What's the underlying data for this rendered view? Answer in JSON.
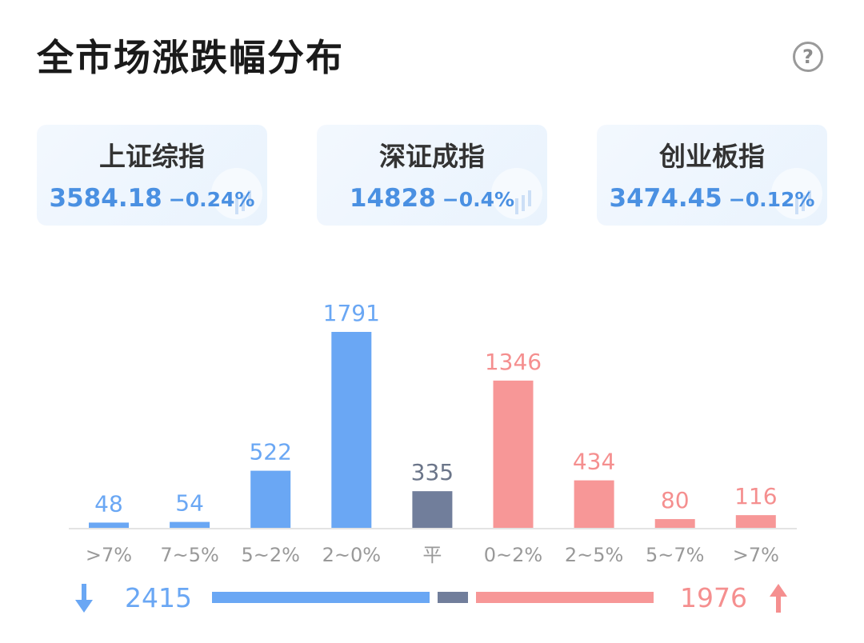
{
  "header": {
    "title": "全市场涨跌幅分布",
    "help_icon": "?"
  },
  "indices": [
    {
      "name": "上证综指",
      "value": "3584.18",
      "change": "−0.24%"
    },
    {
      "name": "深证成指",
      "value": "14828",
      "change": "−0.4%"
    },
    {
      "name": "创业板指",
      "value": "3474.45",
      "change": "−0.12%"
    }
  ],
  "colors": {
    "down": "#6aa7f4",
    "flat": "#717e9b",
    "up": "#f79797",
    "down_text": "#6aa7f4",
    "flat_text": "#6b7589",
    "up_text": "#f58f8f",
    "axis": "#e3e3e3",
    "tick_text": "#999999"
  },
  "chart_data": {
    "type": "bar",
    "categories": [
      ">7%",
      "7~5%",
      "5~2%",
      "2~0%",
      "平",
      "0~2%",
      "2~5%",
      "5~7%",
      ">7%"
    ],
    "values": [
      48,
      54,
      522,
      1791,
      335,
      1346,
      434,
      80,
      116
    ],
    "groups": [
      "down",
      "down",
      "down",
      "down",
      "flat",
      "up",
      "up",
      "up",
      "up"
    ],
    "ylim": [
      0,
      1791
    ]
  },
  "summary": {
    "down_total": "2415",
    "up_total": "1976",
    "down_value": 2415,
    "flat_value": 335,
    "up_value": 1976
  }
}
